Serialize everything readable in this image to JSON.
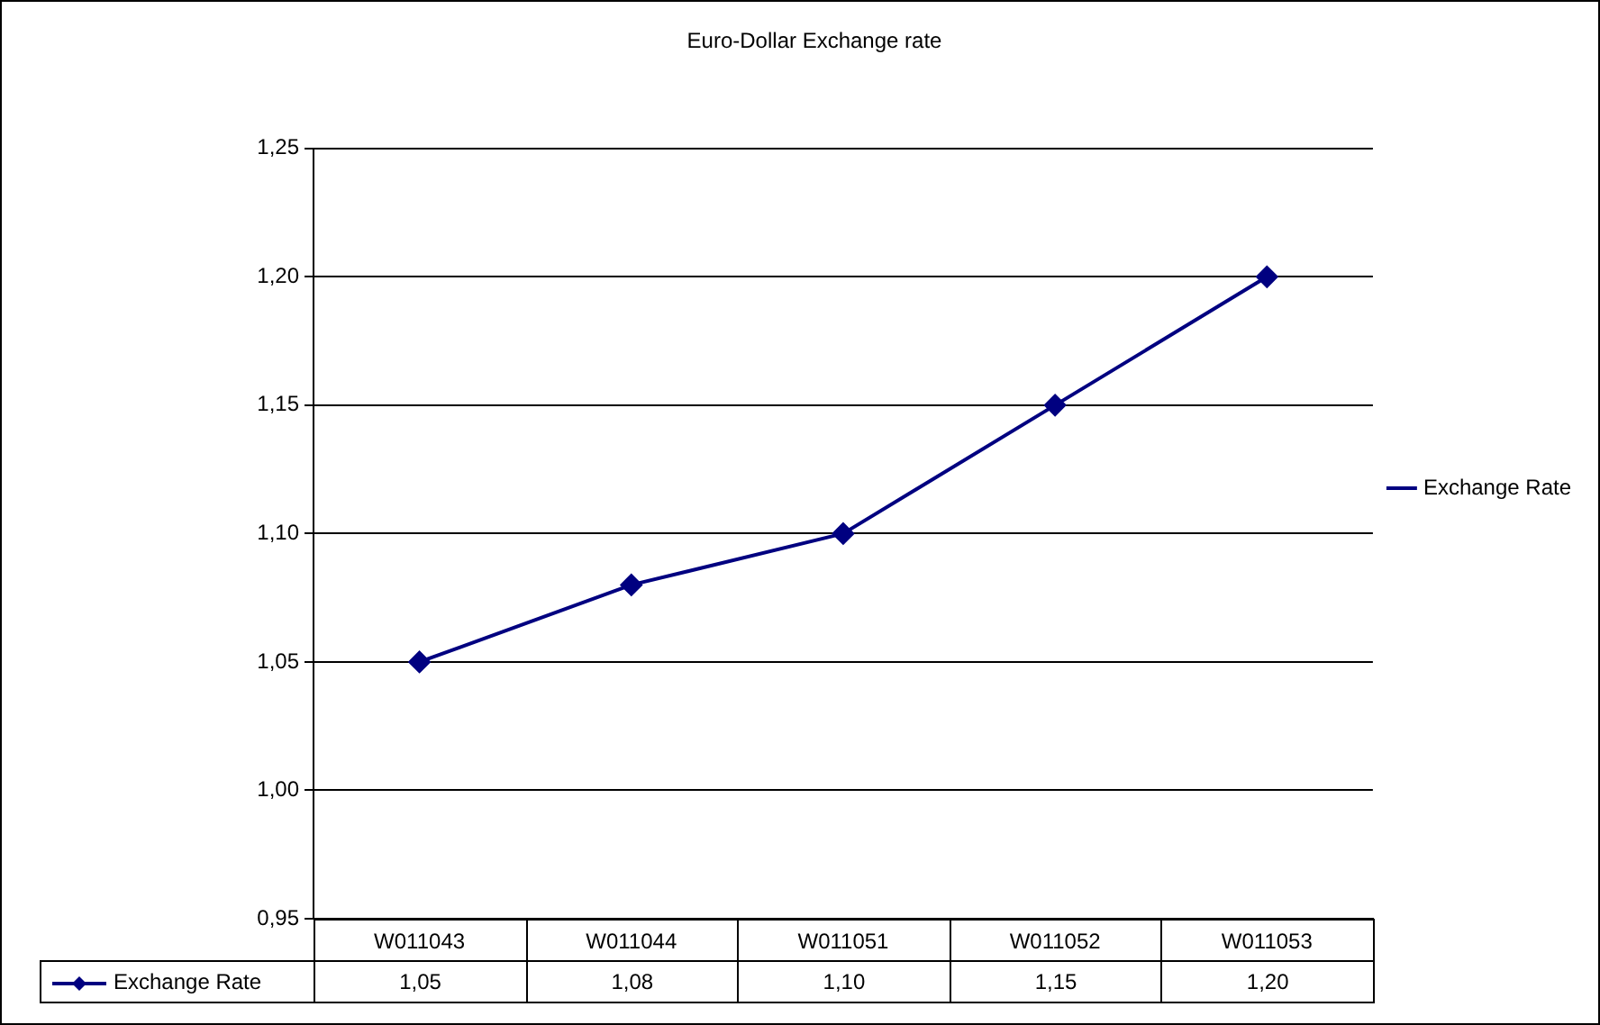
{
  "chart_data": {
    "type": "line",
    "title": "Euro-Dollar Exchange rate",
    "categories": [
      "W011043",
      "W011044",
      "W011051",
      "W011052",
      "W011053"
    ],
    "series": [
      {
        "name": "Exchange Rate",
        "color": "#000080",
        "values": [
          1.05,
          1.08,
          1.1,
          1.15,
          1.2
        ],
        "value_labels": [
          "1,05",
          "1,08",
          "1,10",
          "1,15",
          "1,20"
        ]
      }
    ],
    "ylim": [
      0.95,
      1.25
    ],
    "yticks": [
      {
        "value": 0.95,
        "label": "0,95"
      },
      {
        "value": 1.0,
        "label": "1,00"
      },
      {
        "value": 1.05,
        "label": "1,05"
      },
      {
        "value": 1.1,
        "label": "1,10"
      },
      {
        "value": 1.15,
        "label": "1,15"
      },
      {
        "value": 1.2,
        "label": "1,20"
      },
      {
        "value": 1.25,
        "label": "1,25"
      }
    ],
    "grid": "y",
    "legend": "right",
    "marker": "diamond",
    "line_style": "solid"
  }
}
